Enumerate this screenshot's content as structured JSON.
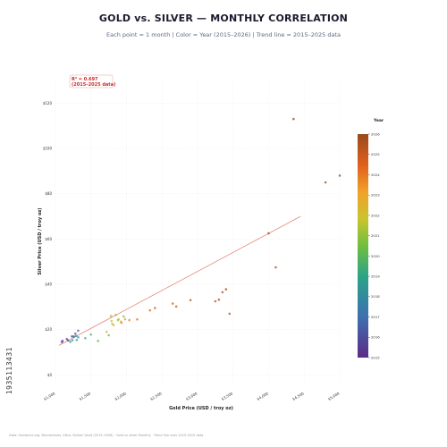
{
  "header": {
    "title": "GOLD vs. SILVER — MONTHLY CORRELATION",
    "subtitle": "Each point = 1 month  |  Color = Year (2015–2026)  |  Trend line = 2015–2025 data"
  },
  "annotation": {
    "r2_line1": "R² = 0.697",
    "r2_line2": "(2015–2025 data)"
  },
  "colorbar": {
    "title": "Year",
    "ticks": [
      "2026",
      "2025",
      "2024",
      "2023",
      "2022",
      "2021",
      "2020",
      "2019",
      "2018",
      "2017",
      "2016",
      "2015"
    ]
  },
  "watermark_id": "1935113431",
  "footnote": "Data: Goldprice.org, Macrotrends, Kitco, Bullion Vault (2015–2026) · Gold vs silver Monthly · Trend line uses 2015-2025 data",
  "chart_data": {
    "type": "scatter",
    "title": "GOLD vs. SILVER — MONTHLY CORRELATION",
    "xlabel": "Gold Price (USD / troy oz)",
    "ylabel": "Silver Price (USD / troy oz)",
    "xlim": [
      1000,
      5000
    ],
    "ylim": [
      -5,
      130
    ],
    "x_ticks": [
      "$1,000",
      "$1,500",
      "$2,000",
      "$2,500",
      "$3,000",
      "$3,500",
      "$4,000",
      "$4,500",
      "$5,000"
    ],
    "x_tick_values": [
      1000,
      1500,
      2000,
      2500,
      3000,
      3500,
      4000,
      4500,
      5000
    ],
    "y_ticks": [
      "$0",
      "$20",
      "$40",
      "$60",
      "$80",
      "$100",
      "$120"
    ],
    "y_tick_values": [
      0,
      20,
      40,
      60,
      80,
      100,
      120
    ],
    "grid": true,
    "trend_line": {
      "x": [
        1050,
        4450
      ],
      "y": [
        13,
        70
      ],
      "color": "#e8867a"
    },
    "r_squared": 0.697,
    "colorbar_range": [
      2015,
      2026
    ],
    "points": [
      {
        "x": 1100,
        "y": 15.0,
        "year": 2015.2
      },
      {
        "x": 1160,
        "y": 15.8,
        "year": 2015.5
      },
      {
        "x": 1090,
        "y": 14.5,
        "year": 2015.9
      },
      {
        "x": 1180,
        "y": 15.2,
        "year": 2016.1
      },
      {
        "x": 1250,
        "y": 17.0,
        "year": 2016.4
      },
      {
        "x": 1320,
        "y": 19.5,
        "year": 2016.6
      },
      {
        "x": 1280,
        "y": 18.2,
        "year": 2016.8
      },
      {
        "x": 1230,
        "y": 17.0,
        "year": 2017.1
      },
      {
        "x": 1260,
        "y": 16.8,
        "year": 2017.5
      },
      {
        "x": 1290,
        "y": 17.2,
        "year": 2017.9
      },
      {
        "x": 1320,
        "y": 16.6,
        "year": 2018.2
      },
      {
        "x": 1240,
        "y": 15.3,
        "year": 2018.6
      },
      {
        "x": 1210,
        "y": 14.6,
        "year": 2018.9
      },
      {
        "x": 1300,
        "y": 15.4,
        "year": 2019.2
      },
      {
        "x": 1420,
        "y": 16.2,
        "year": 2019.5
      },
      {
        "x": 1500,
        "y": 17.8,
        "year": 2019.8
      },
      {
        "x": 1600,
        "y": 15.0,
        "year": 2020.2
      },
      {
        "x": 1750,
        "y": 17.5,
        "year": 2020.4
      },
      {
        "x": 1960,
        "y": 25.8,
        "year": 2020.6
      },
      {
        "x": 1880,
        "y": 24.2,
        "year": 2020.9
      },
      {
        "x": 1850,
        "y": 26.5,
        "year": 2021.1
      },
      {
        "x": 1780,
        "y": 26.0,
        "year": 2021.4
      },
      {
        "x": 1790,
        "y": 23.8,
        "year": 2021.8
      },
      {
        "x": 1890,
        "y": 24.6,
        "year": 2022.2
      },
      {
        "x": 1820,
        "y": 22.0,
        "year": 2022.4
      },
      {
        "x": 1720,
        "y": 19.0,
        "year": 2022.7
      },
      {
        "x": 1800,
        "y": 22.5,
        "year": 2022.95
      },
      {
        "x": 1920,
        "y": 23.5,
        "year": 2023.2
      },
      {
        "x": 1980,
        "y": 24.6,
        "year": 2023.4
      },
      {
        "x": 1930,
        "y": 23.0,
        "year": 2023.7
      },
      {
        "x": 2040,
        "y": 24.2,
        "year": 2023.95
      },
      {
        "x": 2150,
        "y": 24.5,
        "year": 2024.2
      },
      {
        "x": 2330,
        "y": 28.5,
        "year": 2024.4
      },
      {
        "x": 2400,
        "y": 29.5,
        "year": 2024.6
      },
      {
        "x": 2650,
        "y": 31.5,
        "year": 2024.8
      },
      {
        "x": 2700,
        "y": 30.2,
        "year": 2025.0
      },
      {
        "x": 2900,
        "y": 33.0,
        "year": 2025.2
      },
      {
        "x": 3250,
        "y": 32.5,
        "year": 2025.35
      },
      {
        "x": 3300,
        "y": 33.2,
        "year": 2025.45
      },
      {
        "x": 3350,
        "y": 36.5,
        "year": 2025.6
      },
      {
        "x": 3400,
        "y": 37.8,
        "year": 2025.7
      },
      {
        "x": 3450,
        "y": 27.0,
        "year": 2025.5
      },
      {
        "x": 4100,
        "y": 47.5,
        "year": 2025.8
      },
      {
        "x": 4000,
        "y": 62.5,
        "year": 2025.9
      },
      {
        "x": 4350,
        "y": 113.0,
        "year": 2026.0
      },
      {
        "x": 4800,
        "y": 85.0,
        "year": 2026.0
      },
      {
        "x": 5000,
        "y": 88.0,
        "year": 2026.0
      }
    ]
  }
}
